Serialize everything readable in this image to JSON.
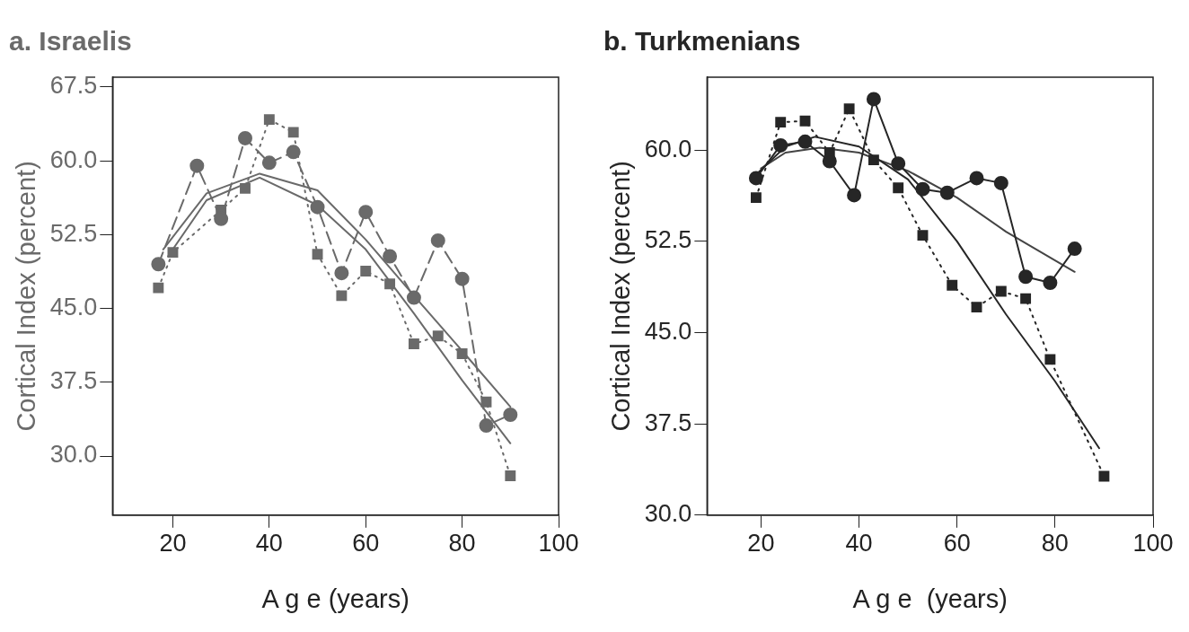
{
  "chart_data": [
    {
      "type": "line",
      "title": "a. Israelis",
      "xlabel": "A g e (years)",
      "ylabel": "Cortical Index (percent)",
      "xlim": [
        7.5,
        100
      ],
      "xticks": [
        20,
        40,
        60,
        80,
        100
      ],
      "ylim": [
        24,
        68.5
      ],
      "yticks": [
        {
          "value": 30,
          "label": "30.0"
        },
        {
          "value": 37.5,
          "label": "37.5"
        },
        {
          "value": 45,
          "label": "45.0"
        },
        {
          "value": 52.5,
          "label": "52.5"
        },
        {
          "value": 60,
          "label": "60.0"
        },
        {
          "value": 67.5,
          "label": "67.5"
        }
      ],
      "grid": false,
      "legend": false,
      "series": [
        {
          "color": "#6a6a6a",
          "marker": "circle",
          "line_style": "dashed",
          "x": [
            17,
            25,
            30,
            35,
            40,
            45,
            50,
            55,
            60,
            65,
            70,
            75,
            80,
            85,
            90
          ],
          "values": [
            49.5,
            59.5,
            54.1,
            62.3,
            59.8,
            60.9,
            55.3,
            48.6,
            54.8,
            50.3,
            46.1,
            51.9,
            48.0,
            33.1,
            34.2
          ]
        },
        {
          "color": "#6a6a6a",
          "marker": "square",
          "line_style": "dotted",
          "x": [
            17,
            20,
            30,
            35,
            40,
            45,
            50,
            55,
            60,
            65,
            70,
            75,
            80,
            85,
            90
          ],
          "values": [
            47.1,
            50.7,
            55.0,
            57.2,
            64.2,
            62.9,
            50.5,
            46.3,
            48.8,
            47.5,
            41.4,
            42.2,
            40.4,
            35.5,
            28.0
          ]
        },
        {
          "color": "#6a6a6a",
          "marker": "none",
          "line_style": "solid",
          "x": [
            18,
            27,
            38,
            50,
            60,
            70,
            80,
            90
          ],
          "values": [
            51.0,
            56.7,
            58.7,
            57.0,
            52.0,
            46.3,
            40.7,
            35.0
          ]
        },
        {
          "color": "#6a6a6a",
          "marker": "none",
          "line_style": "solid",
          "x": [
            19,
            27,
            38,
            50,
            60,
            70,
            80,
            90
          ],
          "values": [
            50.3,
            56.0,
            58.3,
            55.5,
            51.0,
            44.5,
            37.7,
            31.3
          ]
        }
      ]
    },
    {
      "type": "line",
      "title": "b. Turkmenians",
      "xlabel": "A g e  (years)",
      "ylabel": "Cortical Index (percent)",
      "xlim": [
        9,
        100
      ],
      "xticks": [
        20,
        40,
        60,
        80,
        100
      ],
      "ylim": [
        30,
        66
      ],
      "yticks": [
        {
          "value": 30,
          "label": "30.0"
        },
        {
          "value": 37.5,
          "label": "37.5"
        },
        {
          "value": 45,
          "label": "45.0"
        },
        {
          "value": 52.5,
          "label": "52.5"
        },
        {
          "value": 60,
          "label": "60.0"
        }
      ],
      "grid": false,
      "legend": false,
      "series": [
        {
          "color": "#262626",
          "marker": "circle",
          "line_style": "solid",
          "x": [
            19,
            24,
            29,
            34,
            39,
            43,
            48,
            53,
            58,
            64,
            69,
            74,
            79,
            84
          ],
          "values": [
            57.7,
            60.4,
            60.7,
            59.1,
            56.3,
            64.2,
            58.9,
            56.8,
            56.5,
            57.7,
            57.3,
            49.6,
            49.1,
            51.9
          ]
        },
        {
          "color": "#262626",
          "marker": "square",
          "line_style": "dotted",
          "x": [
            19,
            24,
            29,
            34,
            38,
            43,
            48,
            53,
            59,
            64,
            69,
            74,
            79,
            90
          ],
          "values": [
            56.1,
            62.3,
            62.4,
            59.8,
            63.4,
            59.2,
            56.9,
            53.0,
            48.9,
            47.1,
            48.4,
            47.8,
            42.8,
            33.2
          ]
        },
        {
          "color": "#262626",
          "marker": "none",
          "line_style": "solid",
          "x": [
            19,
            25,
            31,
            40,
            50,
            60,
            70,
            80,
            89
          ],
          "values": [
            58.0,
            60.3,
            61.1,
            60.3,
            57.6,
            52.5,
            46.5,
            41.0,
            35.5
          ]
        },
        {
          "color": "#444444",
          "marker": "none",
          "line_style": "solid",
          "x": [
            20,
            25,
            32,
            40,
            50,
            60,
            70,
            84
          ],
          "values": [
            58.5,
            59.8,
            60.2,
            59.8,
            58.3,
            56.1,
            53.3,
            50.0
          ]
        }
      ]
    }
  ]
}
